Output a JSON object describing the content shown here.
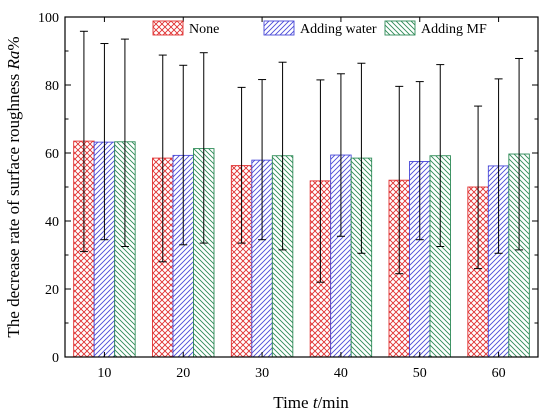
{
  "chart_data": {
    "type": "bar",
    "categories": [
      "10",
      "20",
      "30",
      "40",
      "50",
      "60"
    ],
    "series": [
      {
        "name": "None",
        "values": [
          63.5,
          58.5,
          56.3,
          51.8,
          52.0,
          50.0
        ],
        "error_low": [
          31,
          28,
          33.5,
          22,
          24.5,
          26
        ],
        "error_high": [
          95.8,
          88.8,
          79.3,
          81.5,
          79.6,
          73.8
        ],
        "color": "#e03030",
        "hatch": "crosshatch"
      },
      {
        "name": "Adding water",
        "values": [
          63.2,
          59.3,
          57.9,
          59.4,
          57.5,
          56.2
        ],
        "error_low": [
          34.5,
          33,
          34.5,
          35.5,
          34.5,
          30.5
        ],
        "error_high": [
          92.2,
          85.8,
          81.6,
          83.3,
          81.0,
          81.8
        ],
        "color": "#4a4ad8",
        "hatch": "diagonal"
      },
      {
        "name": "Adding MF",
        "values": [
          63.3,
          61.3,
          59.2,
          58.5,
          59.2,
          59.7
        ],
        "error_low": [
          32.5,
          33.5,
          31.5,
          30.5,
          32.5,
          31.5
        ],
        "error_high": [
          93.5,
          89.5,
          86.7,
          86.4,
          86.0,
          87.8
        ],
        "color": "#2e8b57",
        "hatch": "backdiagonal"
      }
    ],
    "xlabel": {
      "prefix": "Time ",
      "italic": "t",
      "suffix": "/min"
    },
    "ylabel": {
      "prefix": "The decrease rate of surface roughness ",
      "italic": "Ra",
      "suffix": "%"
    },
    "ylim": [
      0,
      100
    ],
    "yticks": [
      0,
      20,
      40,
      60,
      80,
      100
    ],
    "legend_position": "top-right",
    "grid": false
  }
}
